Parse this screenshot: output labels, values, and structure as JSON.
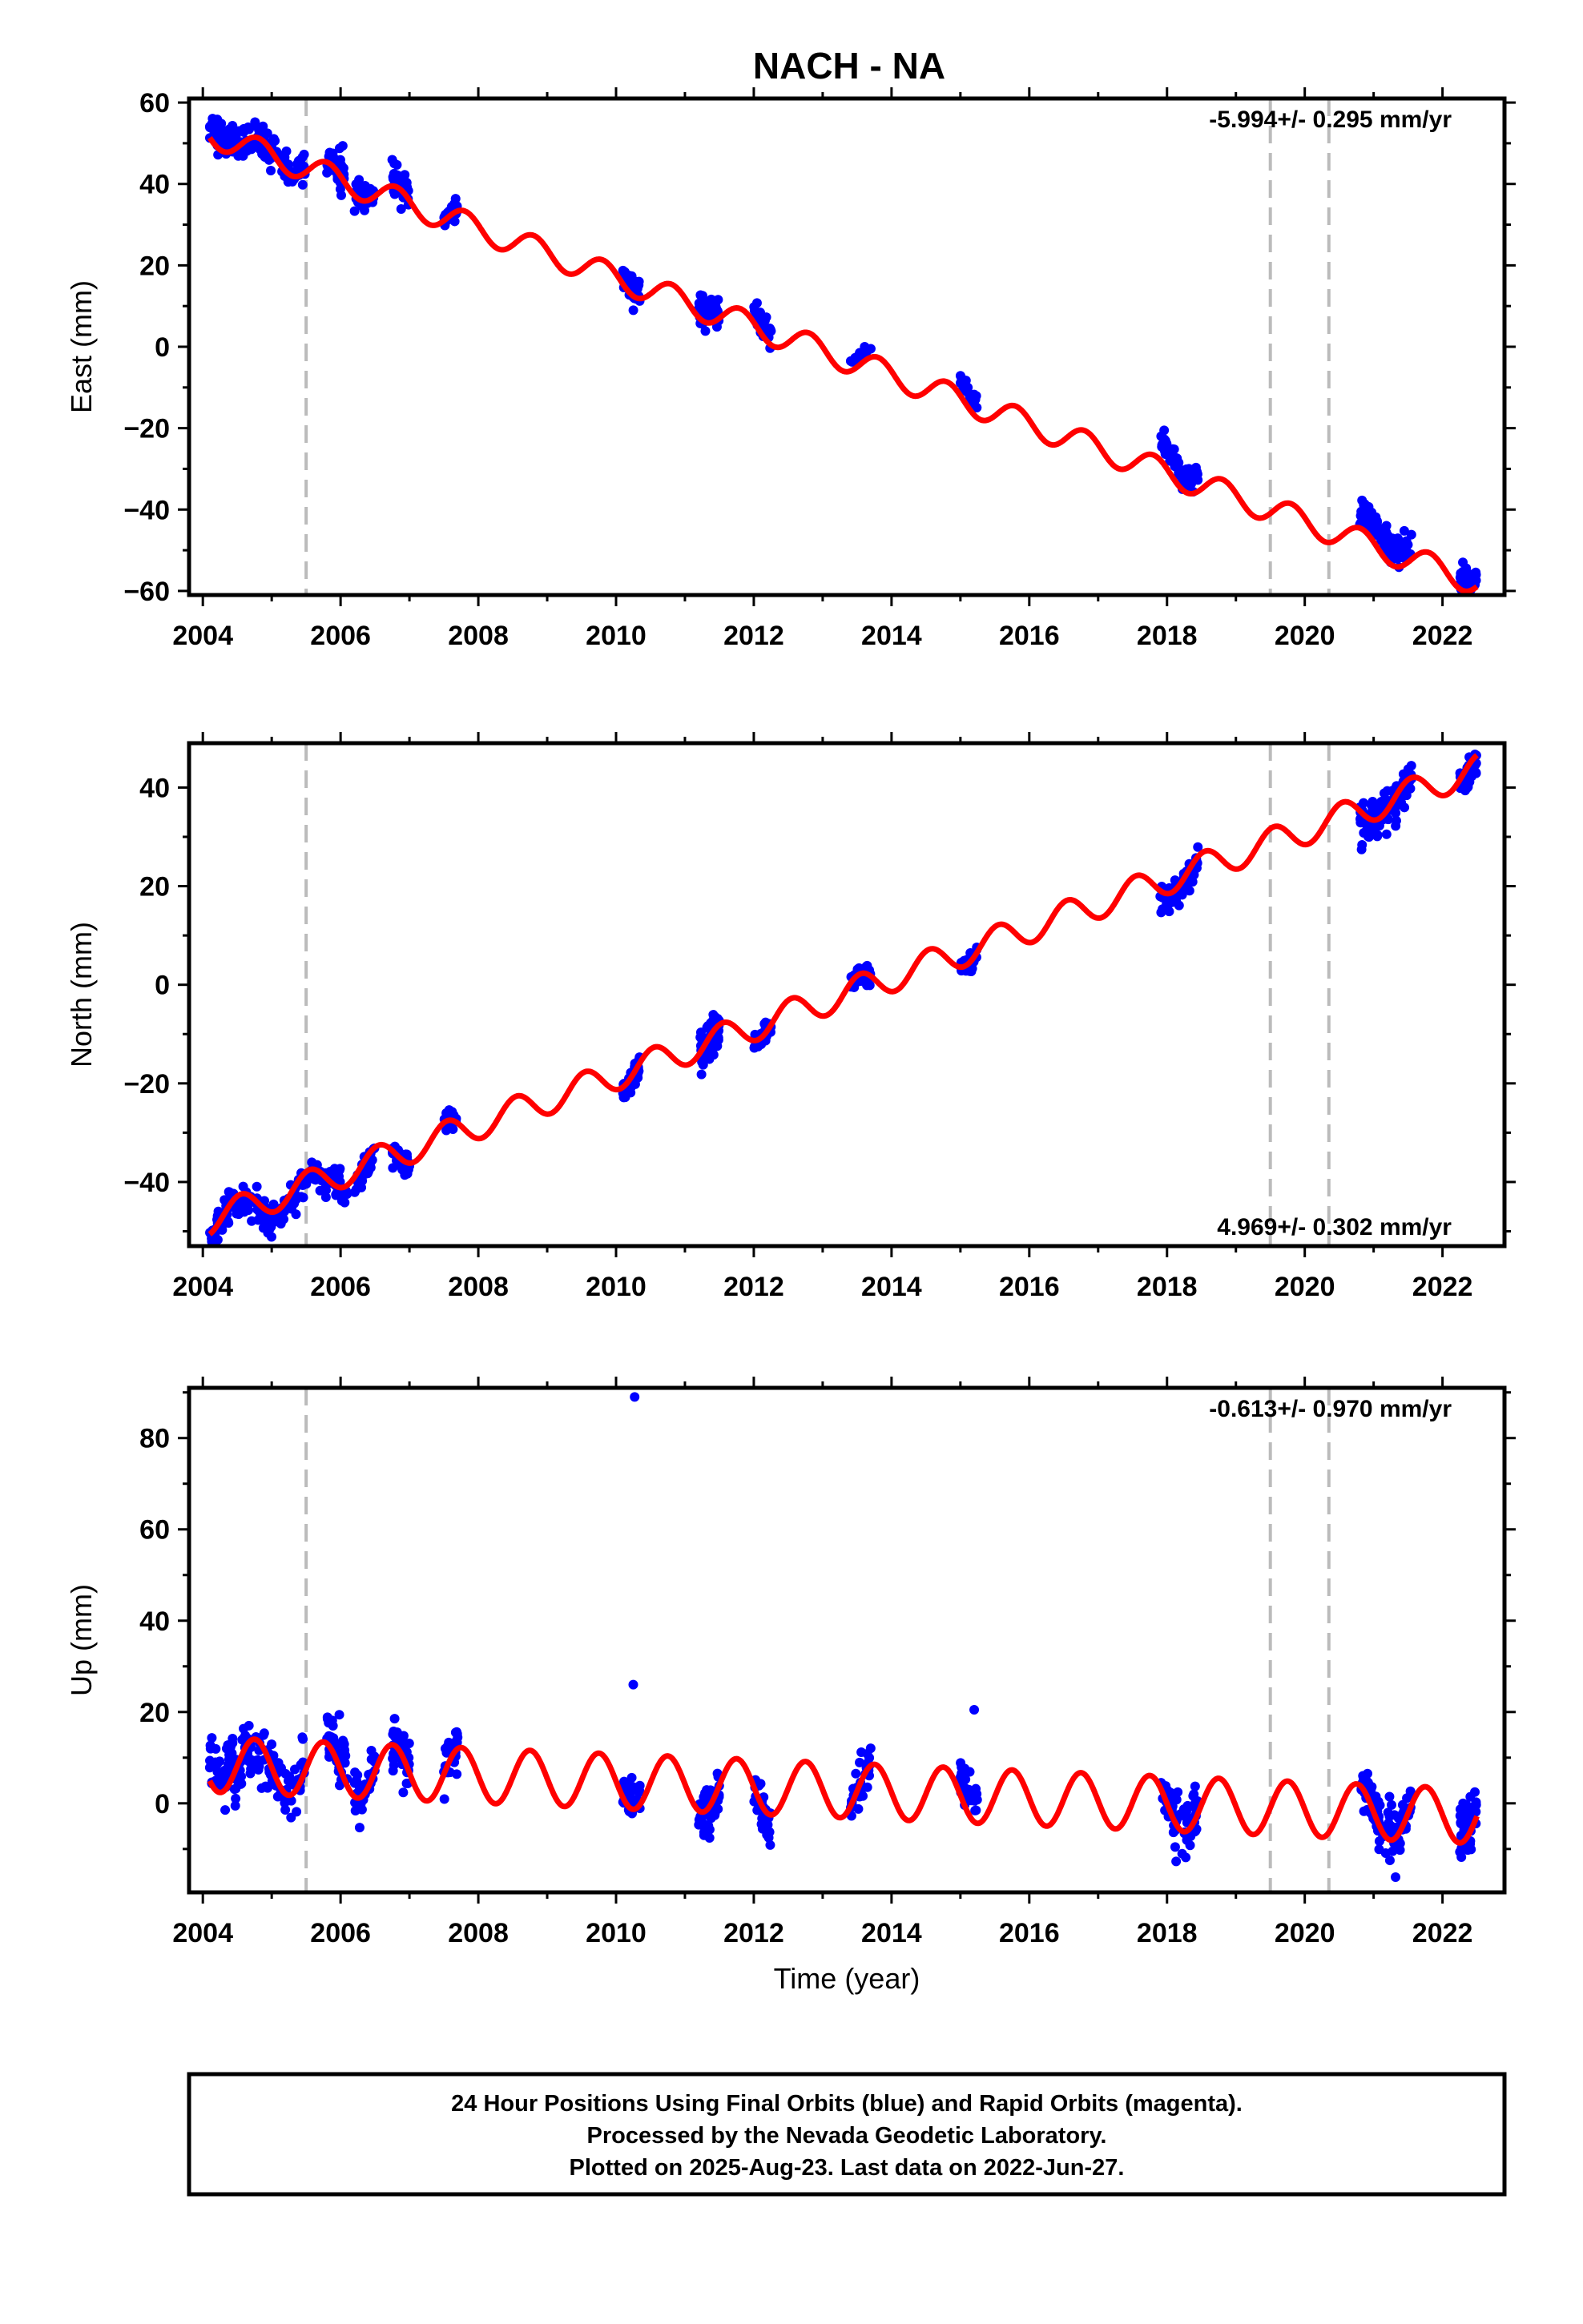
{
  "title": "NACH - NA",
  "colors": {
    "final_orbits": "#0000ff",
    "model": "#ff0000",
    "epoch_lines": "#bbbbbb",
    "frame": "#000000"
  },
  "chart_data": [
    {
      "type": "scatter",
      "component": "East",
      "ylabel": "East (mm)",
      "xlabel": "",
      "xlim": [
        2003.8,
        2022.9
      ],
      "ylim": [
        -61,
        61
      ],
      "xticks": [
        2004,
        2006,
        2008,
        2010,
        2012,
        2014,
        2016,
        2018,
        2020,
        2022
      ],
      "yticks": [
        -60,
        -40,
        -20,
        0,
        20,
        40,
        60
      ],
      "rate_label": "-5.994+/- 0.295 mm/yr",
      "rate_position": "top-right",
      "epoch_lines": [
        2005.5,
        2019.5,
        2020.35
      ],
      "model": {
        "rate": -5.994,
        "value_at_2013": -1.0,
        "annual_amplitude": 3.2,
        "annual_phase_peak": 0.8
      },
      "observations": [
        {
          "x": [
            2004.1,
            2004.45
          ],
          "mean": 55,
          "spread": 3.0,
          "n": 60
        },
        {
          "x": [
            2004.45,
            2005.0
          ],
          "mean": 51,
          "spread": 3.0,
          "n": 60
        },
        {
          "x": [
            2005.0,
            2005.5
          ],
          "mean": 45,
          "spread": 2.5,
          "n": 45
        },
        {
          "x": [
            2005.8,
            2006.05
          ],
          "mean": 46,
          "spread": 3.5,
          "n": 40
        },
        {
          "x": [
            2006.2,
            2006.5
          ],
          "mean": 38,
          "spread": 2.0,
          "n": 40
        },
        {
          "x": [
            2006.75,
            2007.0
          ],
          "mean": 40,
          "spread": 3.0,
          "n": 40
        },
        {
          "x": [
            2007.5,
            2007.7
          ],
          "mean": 33,
          "spread": 1.5,
          "n": 30
        },
        {
          "x": [
            2010.1,
            2010.35
          ],
          "mean": 16,
          "spread": 2.5,
          "n": 40
        },
        {
          "x": [
            2011.2,
            2011.5
          ],
          "mean": 10,
          "spread": 2.5,
          "n": 60
        },
        {
          "x": [
            2012.0,
            2012.25
          ],
          "mean": 8,
          "spread": 2.0,
          "n": 40
        },
        {
          "x": [
            2013.4,
            2013.7
          ],
          "mean": 0,
          "spread": 1.0,
          "n": 30
        },
        {
          "x": [
            2015.0,
            2015.25
          ],
          "mean": -8,
          "spread": 1.5,
          "n": 30
        },
        {
          "x": [
            2017.9,
            2018.45
          ],
          "mean": -26,
          "spread": 2.0,
          "n": 70
        },
        {
          "x": [
            2020.8,
            2021.55
          ],
          "mean": -44,
          "spread": 2.5,
          "n": 110
        },
        {
          "x": [
            2022.25,
            2022.5
          ],
          "mean": -55,
          "spread": 2.0,
          "n": 50
        }
      ]
    },
    {
      "type": "scatter",
      "component": "North",
      "ylabel": "North (mm)",
      "xlabel": "",
      "xlim": [
        2003.8,
        2022.9
      ],
      "ylim": [
        -53,
        49
      ],
      "xticks": [
        2004,
        2006,
        2008,
        2010,
        2012,
        2014,
        2016,
        2018,
        2020,
        2022
      ],
      "yticks": [
        -40,
        -20,
        0,
        20,
        40
      ],
      "rate_label": "4.969+/- 0.302 mm/yr",
      "rate_position": "bottom-right",
      "epoch_lines": [
        2005.5,
        2019.5,
        2020.35
      ],
      "model": {
        "rate": 4.969,
        "value_at_2013": -3.5,
        "annual_amplitude": 3.0,
        "annual_phase_peak": 0.55
      },
      "observations": [
        {
          "x": [
            2004.1,
            2004.45
          ],
          "mean": -48,
          "spread": 2.0,
          "n": 50
        },
        {
          "x": [
            2004.45,
            2005.0
          ],
          "mean": -46,
          "spread": 2.5,
          "n": 60
        },
        {
          "x": [
            2005.0,
            2005.5
          ],
          "mean": -45,
          "spread": 2.5,
          "n": 40
        },
        {
          "x": [
            2005.5,
            2005.8
          ],
          "mean": -40,
          "spread": 2.0,
          "n": 30
        },
        {
          "x": [
            2005.8,
            2006.1
          ],
          "mean": -40,
          "spread": 2.0,
          "n": 40
        },
        {
          "x": [
            2006.2,
            2006.5
          ],
          "mean": -39,
          "spread": 2.0,
          "n": 40
        },
        {
          "x": [
            2006.75,
            2007.0
          ],
          "mean": -37,
          "spread": 2.0,
          "n": 40
        },
        {
          "x": [
            2007.5,
            2007.7
          ],
          "mean": -28,
          "spread": 1.5,
          "n": 30
        },
        {
          "x": [
            2010.1,
            2010.35
          ],
          "mean": -20,
          "spread": 2.0,
          "n": 40
        },
        {
          "x": [
            2011.2,
            2011.5
          ],
          "mean": -12,
          "spread": 3.0,
          "n": 60
        },
        {
          "x": [
            2012.0,
            2012.25
          ],
          "mean": -11,
          "spread": 1.5,
          "n": 40
        },
        {
          "x": [
            2013.4,
            2013.7
          ],
          "mean": 2,
          "spread": 1.2,
          "n": 30
        },
        {
          "x": [
            2015.0,
            2015.25
          ],
          "mean": 4,
          "spread": 1.5,
          "n": 30
        },
        {
          "x": [
            2017.9,
            2018.45
          ],
          "mean": 18,
          "spread": 2.0,
          "n": 70
        },
        {
          "x": [
            2020.8,
            2021.55
          ],
          "mean": 34,
          "spread": 3.0,
          "n": 110
        },
        {
          "x": [
            2022.25,
            2022.5
          ],
          "mean": 42,
          "spread": 2.0,
          "n": 50
        }
      ]
    },
    {
      "type": "scatter",
      "component": "Up",
      "ylabel": "Up (mm)",
      "xlabel": "Time (year)",
      "xlim": [
        2003.8,
        2022.9
      ],
      "ylim": [
        -19.5,
        91
      ],
      "xticks": [
        2004,
        2006,
        2008,
        2010,
        2012,
        2014,
        2016,
        2018,
        2020,
        2022
      ],
      "yticks": [
        0,
        20,
        40,
        60,
        80
      ],
      "rate_label": "-0.613+/- 0.970 mm/yr",
      "rate_position": "top-right",
      "epoch_lines": [
        2005.5,
        2019.5,
        2020.35
      ],
      "model": {
        "rate": -0.613,
        "value_at_2013": 3.0,
        "annual_amplitude": 6.0,
        "annual_phase_peak": 0.75
      },
      "outliers": [
        {
          "x": 2010.27,
          "y": 89
        },
        {
          "x": 2010.25,
          "y": 26
        },
        {
          "x": 2015.2,
          "y": 20.5
        }
      ],
      "observations": [
        {
          "x": [
            2004.1,
            2004.45
          ],
          "mean": 10,
          "spread": 4.0,
          "n": 50
        },
        {
          "x": [
            2004.45,
            2005.0
          ],
          "mean": 10,
          "spread": 5.0,
          "n": 60
        },
        {
          "x": [
            2005.0,
            2005.5
          ],
          "mean": 5,
          "spread": 4.0,
          "n": 40
        },
        {
          "x": [
            2005.8,
            2006.1
          ],
          "mean": 13,
          "spread": 5.0,
          "n": 40
        },
        {
          "x": [
            2006.2,
            2006.5
          ],
          "mean": 3,
          "spread": 4.0,
          "n": 40
        },
        {
          "x": [
            2006.75,
            2007.0
          ],
          "mean": 10,
          "spread": 5.0,
          "n": 40
        },
        {
          "x": [
            2007.5,
            2007.7
          ],
          "mean": 12,
          "spread": 4.0,
          "n": 30
        },
        {
          "x": [
            2010.1,
            2010.35
          ],
          "mean": 2,
          "spread": 3.0,
          "n": 40
        },
        {
          "x": [
            2011.2,
            2011.5
          ],
          "mean": -3,
          "spread": 4.0,
          "n": 60
        },
        {
          "x": [
            2012.0,
            2012.25
          ],
          "mean": -4,
          "spread": 4.0,
          "n": 40
        },
        {
          "x": [
            2013.4,
            2013.7
          ],
          "mean": 5,
          "spread": 4.0,
          "n": 30
        },
        {
          "x": [
            2015.0,
            2015.25
          ],
          "mean": 5,
          "spread": 3.5,
          "n": 30
        },
        {
          "x": [
            2017.9,
            2018.45
          ],
          "mean": -5,
          "spread": 4.0,
          "n": 70
        },
        {
          "x": [
            2020.8,
            2021.55
          ],
          "mean": -6,
          "spread": 4.0,
          "n": 110
        },
        {
          "x": [
            2022.25,
            2022.5
          ],
          "mean": -2,
          "spread": 4.0,
          "n": 50
        }
      ]
    }
  ],
  "footer": {
    "line1": "24 Hour Positions Using Final Orbits (blue) and Rapid Orbits (magenta).",
    "line2": "Processed by the Nevada Geodetic Laboratory.",
    "line3": "Plotted on 2025-Aug-23. Last data on 2022-Jun-27."
  }
}
